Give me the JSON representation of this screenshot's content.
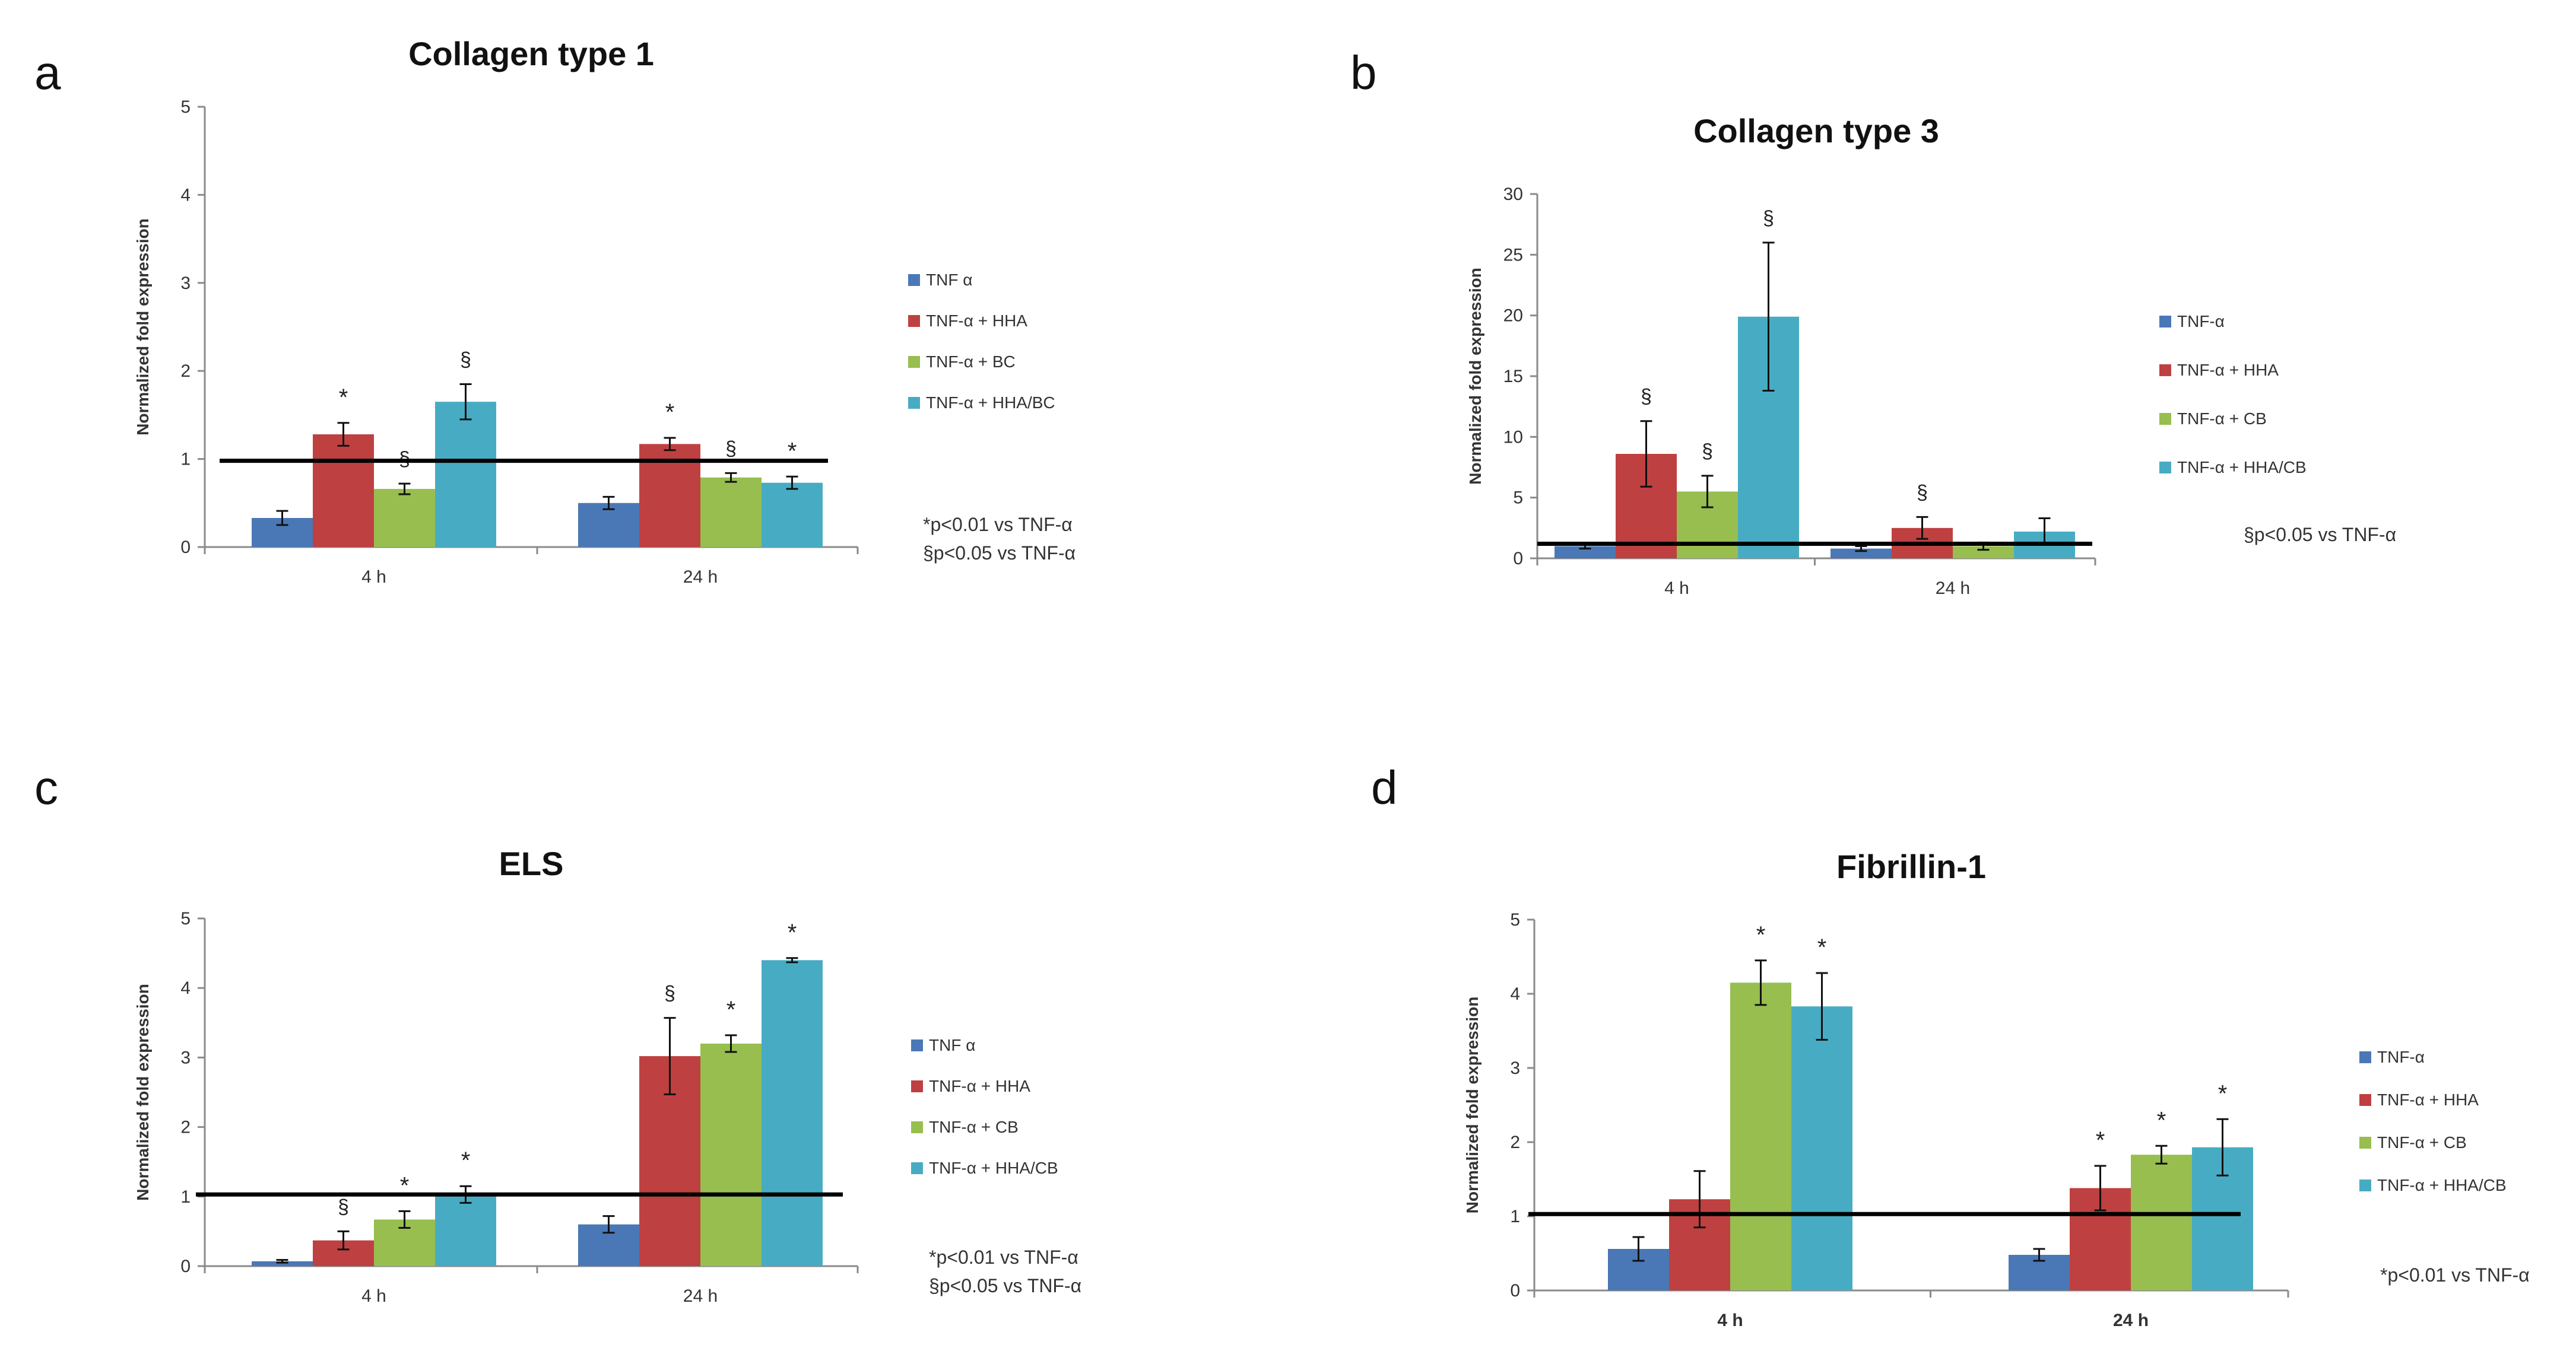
{
  "figure": {
    "panel_letters": [
      "a",
      "b",
      "c",
      "d"
    ]
  },
  "colors": {
    "s0": "#4a78b6",
    "s1": "#bf4040",
    "s2": "#97be4f",
    "s3": "#47acc3",
    "refline": "#000000",
    "axis": "#8a8a8a",
    "text": "#333333"
  },
  "chart_data": [
    {
      "id": "a",
      "type": "bar",
      "title": "Collagen type 1",
      "ylabel": "Normalized fold expression",
      "xlabel": "",
      "ylim": [
        0,
        5
      ],
      "yticks": [
        0,
        1,
        2,
        3,
        4,
        5
      ],
      "categories": [
        "4 h",
        "24 h"
      ],
      "series": [
        {
          "name": "TNF α",
          "values": [
            0.33,
            0.5
          ],
          "errors": [
            0.08,
            0.07
          ],
          "marks": [
            "",
            ""
          ]
        },
        {
          "name": "TNF-α + HHA",
          "values": [
            1.28,
            1.17
          ],
          "errors": [
            0.13,
            0.07
          ],
          "marks": [
            "*",
            "*"
          ]
        },
        {
          "name": "TNF-α + BC",
          "values": [
            0.66,
            0.79
          ],
          "errors": [
            0.06,
            0.05
          ],
          "marks": [
            "§",
            "§"
          ]
        },
        {
          "name": "TNF-α + HHA/BC",
          "values": [
            1.65,
            0.73
          ],
          "errors": [
            0.2,
            0.07
          ],
          "marks": [
            "§",
            "*"
          ]
        }
      ],
      "reference_line": 0.98,
      "notes": [
        "*p<0.01 vs TNF-α",
        "§p<0.05 vs TNF-α"
      ]
    },
    {
      "id": "b",
      "type": "bar",
      "title": "Collagen type 3",
      "ylabel": "Normalized fold expression",
      "xlabel": "",
      "ylim": [
        0,
        30
      ],
      "yticks": [
        0,
        5,
        10,
        15,
        20,
        25,
        30
      ],
      "categories": [
        "4 h",
        "24 h"
      ],
      "series": [
        {
          "name": "TNF-α",
          "values": [
            1.0,
            0.8
          ],
          "errors": [
            0.2,
            0.2
          ],
          "marks": [
            "",
            ""
          ]
        },
        {
          "name": "TNF-α + HHA",
          "values": [
            8.6,
            2.5
          ],
          "errors": [
            2.7,
            0.9
          ],
          "marks": [
            "§",
            "§"
          ]
        },
        {
          "name": "TNF-α + CB",
          "values": [
            5.5,
            1.0
          ],
          "errors": [
            1.3,
            0.3
          ],
          "marks": [
            "§",
            ""
          ]
        },
        {
          "name": "TNF-α + HHA/CB",
          "values": [
            19.9,
            2.2
          ],
          "errors": [
            6.1,
            1.1
          ],
          "marks": [
            "§",
            ""
          ]
        }
      ],
      "reference_line": 1.2,
      "notes": [
        "§p<0.05 vs TNF-α"
      ]
    },
    {
      "id": "c",
      "type": "bar",
      "title": "ELS",
      "ylabel": "Normalized fold expression",
      "xlabel": "",
      "ylim": [
        0,
        5
      ],
      "yticks": [
        0,
        1,
        2,
        3,
        4,
        5
      ],
      "categories": [
        "4 h",
        "24 h"
      ],
      "series": [
        {
          "name": "TNF α",
          "values": [
            0.07,
            0.6
          ],
          "errors": [
            0.02,
            0.12
          ],
          "marks": [
            "",
            ""
          ]
        },
        {
          "name": "TNF-α + HHA",
          "values": [
            0.37,
            3.02
          ],
          "errors": [
            0.13,
            0.55
          ],
          "marks": [
            "§",
            "§"
          ]
        },
        {
          "name": "TNF-α + CB",
          "values": [
            0.67,
            3.2
          ],
          "errors": [
            0.12,
            0.12
          ],
          "marks": [
            "*",
            "*"
          ]
        },
        {
          "name": "TNF-α + HHA/CB",
          "values": [
            1.03,
            4.4
          ],
          "errors": [
            0.12,
            0.03
          ],
          "marks": [
            "*",
            "*"
          ]
        }
      ],
      "reference_line": 1.03,
      "notes": [
        "*p<0.01 vs TNF-α",
        "§p<0.05 vs TNF-α"
      ]
    },
    {
      "id": "d",
      "type": "bar",
      "title": "Fibrillin-1",
      "ylabel": "Normalized fold expression",
      "xlabel": "",
      "ylim": [
        0,
        5
      ],
      "yticks": [
        0,
        1,
        2,
        3,
        4,
        5
      ],
      "categories": [
        "4 h",
        "24 h"
      ],
      "series": [
        {
          "name": "TNF-α",
          "values": [
            0.56,
            0.48
          ],
          "errors": [
            0.16,
            0.08
          ],
          "marks": [
            "",
            ""
          ]
        },
        {
          "name": "TNF-α + HHA",
          "values": [
            1.23,
            1.38
          ],
          "errors": [
            0.38,
            0.3
          ],
          "marks": [
            "",
            "*"
          ]
        },
        {
          "name": "TNF-α + CB",
          "values": [
            4.15,
            1.83
          ],
          "errors": [
            0.3,
            0.12
          ],
          "marks": [
            "*",
            "*"
          ]
        },
        {
          "name": "TNF-α + HHA/CB",
          "values": [
            3.83,
            1.93
          ],
          "errors": [
            0.45,
            0.38
          ],
          "marks": [
            "*",
            "*"
          ]
        }
      ],
      "reference_line": 1.03,
      "notes": [
        "*p<0.01 vs TNF-α"
      ]
    }
  ]
}
